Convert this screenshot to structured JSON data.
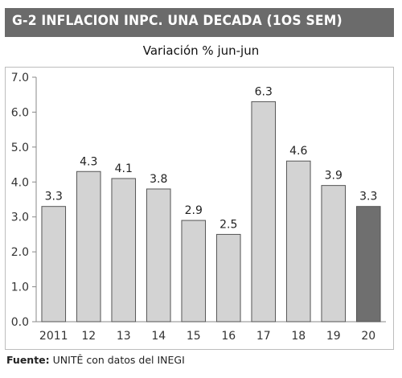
{
  "title": "G-2 INFLACION INPC. UNA DECADA (1OS SEM)",
  "source": {
    "label": "Fuente:",
    "text": "UNITÊ con datos del INEGI"
  },
  "colors": {
    "bar_fill": "#d3d3d3",
    "highlight_fill": "#6f6f6f",
    "bar_stroke": "#555555",
    "title_bg": "#6b6b6b"
  },
  "chart_data": {
    "type": "bar",
    "title": "Variación % jun-jun",
    "categories": [
      "2011",
      "12",
      "13",
      "14",
      "15",
      "16",
      "17",
      "18",
      "19",
      "20"
    ],
    "values": [
      3.3,
      4.3,
      4.1,
      3.8,
      2.9,
      2.5,
      6.3,
      4.6,
      3.9,
      3.3
    ],
    "value_labels": [
      "3.3",
      "4.3",
      "4.1",
      "3.8",
      "2.9",
      "2.5",
      "6.3",
      "4.6",
      "3.9",
      "3.3"
    ],
    "highlight_index": 9,
    "ylim": [
      0,
      7
    ],
    "yticks": [
      "0.0",
      "1.0",
      "2.0",
      "3.0",
      "4.0",
      "5.0",
      "6.0",
      "7.0"
    ],
    "xlabel": "",
    "ylabel": "",
    "grid": false,
    "legend": "none"
  }
}
